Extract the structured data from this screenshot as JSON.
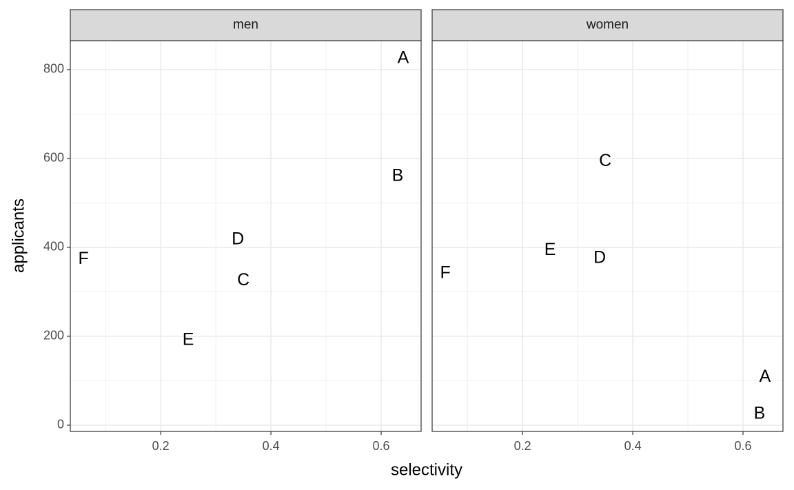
{
  "chart_data": {
    "type": "text-scatter",
    "x_label": "selectivity",
    "y_label": "applicants",
    "xlim": [
      0.036,
      0.6725
    ],
    "ylim": [
      -14,
      865
    ],
    "xticks": [
      0.2,
      0.4,
      0.6
    ],
    "yticks": [
      0,
      200,
      400,
      600,
      800
    ],
    "minor_xticks": [
      0.1,
      0.3,
      0.5
    ],
    "minor_yticks": [
      100,
      300,
      500,
      700
    ],
    "grid": true,
    "panels": [
      {
        "title": "men",
        "labels": [
          "A",
          "B",
          "C",
          "D",
          "E",
          "F"
        ],
        "x": [
          0.64,
          0.63,
          0.35,
          0.34,
          0.25,
          0.06
        ],
        "y": [
          825,
          560,
          325,
          417,
          191,
          373
        ]
      },
      {
        "title": "women",
        "labels": [
          "A",
          "B",
          "C",
          "D",
          "E",
          "F"
        ],
        "x": [
          0.64,
          0.63,
          0.35,
          0.34,
          0.25,
          0.06
        ],
        "y": [
          108,
          25,
          593,
          375,
          393,
          341
        ]
      }
    ]
  }
}
